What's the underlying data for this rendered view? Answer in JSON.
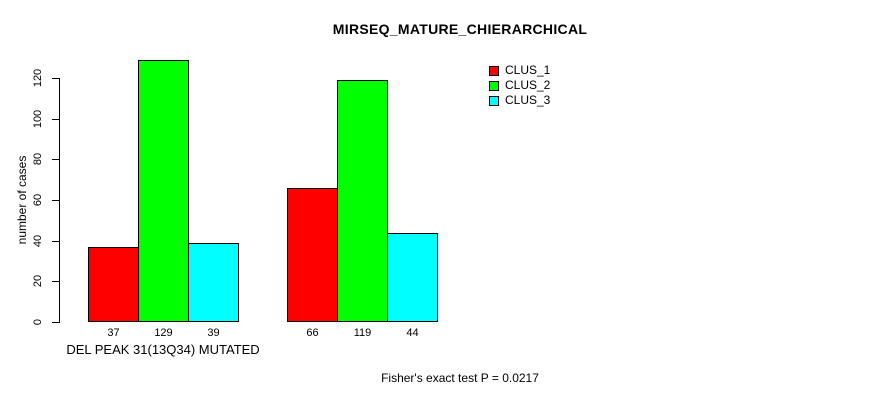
{
  "chart_data": {
    "type": "bar",
    "title": "MIRSEQ_MATURE_CHIERARCHICAL",
    "ylabel": "number of cases",
    "xlabel": "DEL PEAK 31(13Q34) MUTATED",
    "yticks": [
      0,
      20,
      40,
      60,
      80,
      100,
      120
    ],
    "axis_max": 120,
    "grid": false,
    "legend_position": "top-right",
    "series": [
      {
        "name": "CLUS_1",
        "color": "#ff0000",
        "values": [
          37,
          66
        ]
      },
      {
        "name": "CLUS_2",
        "color": "#00ff00",
        "values": [
          129,
          119
        ]
      },
      {
        "name": "CLUS_3",
        "color": "#00ffff",
        "values": [
          39,
          44
        ]
      }
    ],
    "groups": [
      {
        "label": "DEL PEAK 31(13Q34) MUTATED",
        "values": [
          37,
          129,
          39
        ]
      },
      {
        "label": "",
        "values": [
          66,
          119,
          44
        ]
      }
    ],
    "annotation": "Fisher's exact test P = 0.0217"
  }
}
